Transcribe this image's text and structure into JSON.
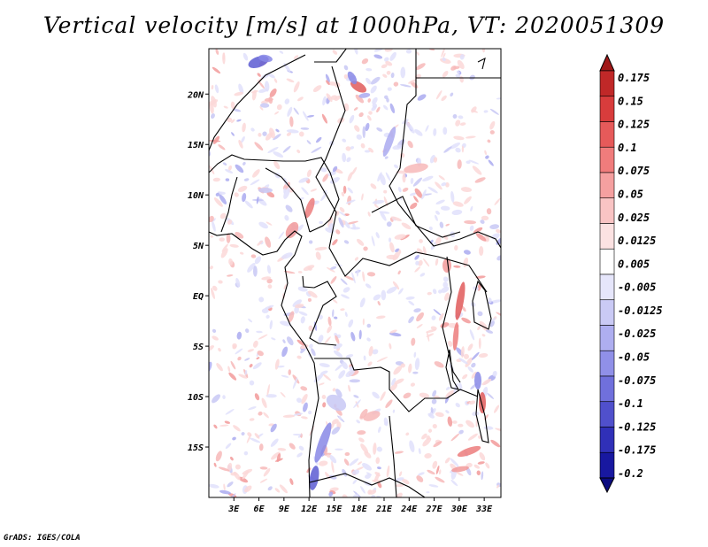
{
  "title": "Vertical velocity [m/s] at 1000hPa, VT: 2020051309",
  "credit": "GrADS: IGES/COLA",
  "lat_labels": [
    "20N",
    "15N",
    "10N",
    "5N",
    "EQ",
    "5S",
    "10S",
    "15S"
  ],
  "lat_values": [
    20,
    15,
    10,
    5,
    0,
    -5,
    -10,
    -15
  ],
  "lon_labels": [
    "3E",
    "6E",
    "9E",
    "12E",
    "15E",
    "18E",
    "21E",
    "24E",
    "27E",
    "30E",
    "33E"
  ],
  "lon_values": [
    3,
    6,
    9,
    12,
    15,
    18,
    21,
    24,
    27,
    30,
    33
  ],
  "map_extent": {
    "lon_min": 0,
    "lon_max": 35,
    "lat_min": -20,
    "lat_max": 24.5
  },
  "colorbar": {
    "levels": [
      "0.175",
      "0.15",
      "0.125",
      "0.1",
      "0.075",
      "0.05",
      "0.025",
      "0.0125",
      "0.005",
      "-0.005",
      "-0.0125",
      "-0.025",
      "-0.05",
      "-0.075",
      "-0.1",
      "-0.125",
      "-0.175",
      "-0.2"
    ],
    "colors": [
      "#a01818",
      "#c02828",
      "#d83c3c",
      "#e65a5a",
      "#f07c7c",
      "#f5a0a0",
      "#f9c4c4",
      "#fce2e2",
      "#ffffff",
      "#e6e6fb",
      "#cacaf5",
      "#aeaef0",
      "#9090e8",
      "#7070dc",
      "#5050cc",
      "#3030b8",
      "#1818a0",
      "#0c0c80"
    ]
  },
  "chart_data": {
    "type": "heatmap",
    "title": "Vertical velocity [m/s] at 1000hPa, VT: 2020051309",
    "variable": "Vertical velocity",
    "units": "m/s",
    "level": "1000hPa",
    "valid_time": "2020051309",
    "xlim": [
      0,
      35
    ],
    "ylim": [
      -20,
      24.5
    ]
  }
}
